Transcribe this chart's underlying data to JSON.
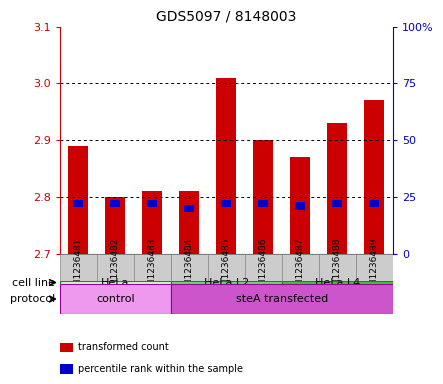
{
  "title": "GDS5097 / 8148003",
  "samples": [
    "GSM1236481",
    "GSM1236482",
    "GSM1236483",
    "GSM1236484",
    "GSM1236485",
    "GSM1236486",
    "GSM1236487",
    "GSM1236488",
    "GSM1236489"
  ],
  "transformed_counts": [
    2.89,
    2.8,
    2.81,
    2.81,
    3.01,
    2.9,
    2.87,
    2.93,
    2.97
  ],
  "percentile_ranks": [
    22,
    22,
    22,
    20,
    22,
    22,
    21,
    22,
    22
  ],
  "ylim_left": [
    2.7,
    3.1
  ],
  "ylim_right": [
    0,
    100
  ],
  "right_ticks": [
    0,
    25,
    50,
    75,
    100
  ],
  "right_tick_labels": [
    "0",
    "25",
    "50",
    "75",
    "100%"
  ],
  "left_ticks": [
    2.7,
    2.8,
    2.9,
    3.0,
    3.1
  ],
  "left_tick_color": "#cc0000",
  "right_tick_color": "#0000cc",
  "bar_color": "#cc0000",
  "percentile_color": "#0000cc",
  "grid_color": "#000000",
  "cell_line_groups": [
    {
      "label": "HeLa",
      "start": 0,
      "end": 3,
      "color": "#ccffcc"
    },
    {
      "label": "HeLa L2",
      "start": 3,
      "end": 6,
      "color": "#66dd66"
    },
    {
      "label": "HeLa L4",
      "start": 6,
      "end": 9,
      "color": "#33cc33"
    }
  ],
  "protocol_groups": [
    {
      "label": "control",
      "start": 0,
      "end": 3,
      "color": "#ee99ee"
    },
    {
      "label": "steA transfected",
      "start": 3,
      "end": 9,
      "color": "#cc55cc"
    }
  ],
  "legend_items": [
    {
      "color": "#cc0000",
      "label": "transformed count"
    },
    {
      "color": "#0000cc",
      "label": "percentile rank within the sample"
    }
  ],
  "bar_width": 0.55,
  "label_box_color": "#cccccc",
  "label_box_edge": "#888888"
}
